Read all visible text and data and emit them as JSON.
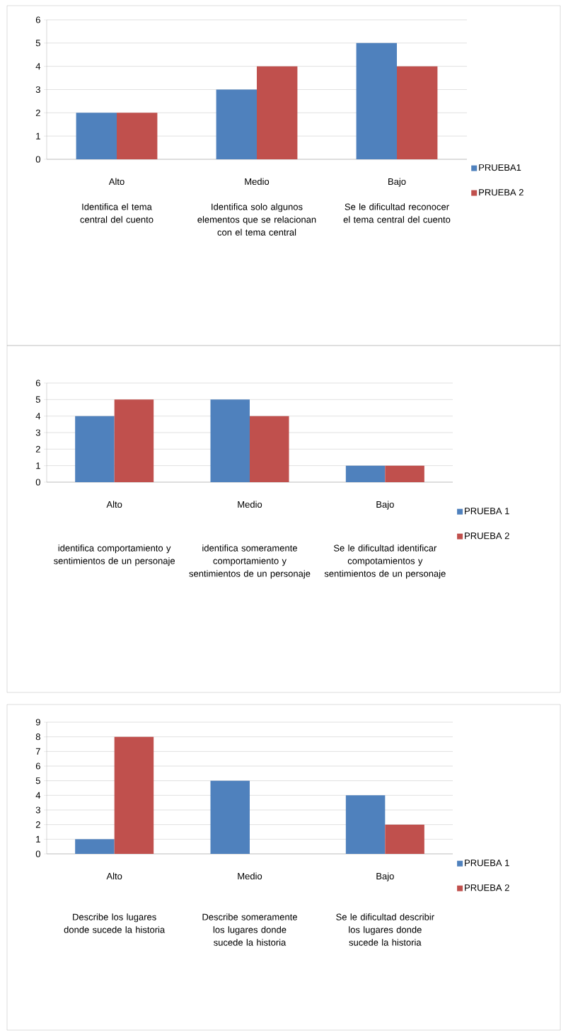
{
  "chart_data": [
    {
      "type": "bar",
      "categories": [
        "Alto",
        "Medio",
        "Bajo"
      ],
      "series": [
        {
          "name": "PRUEBA1",
          "color": "#4f81bd",
          "values": [
            2,
            3,
            5
          ]
        },
        {
          "name": "PRUEBA 2",
          "color": "#c0504d",
          "values": [
            2,
            4,
            4
          ]
        }
      ],
      "ylim": [
        0,
        6
      ],
      "yticks": [
        0,
        1,
        2,
        3,
        4,
        5,
        6
      ],
      "grid": "y",
      "legend": "right",
      "annotations": [
        "Identifica el tema central del cuento",
        "Identifica solo algunos elementos que se relacionan con el tema central",
        "Se le dificultad reconocer el tema central del cuento"
      ]
    },
    {
      "type": "bar",
      "categories": [
        "Alto",
        "Medio",
        "Bajo"
      ],
      "series": [
        {
          "name": "PRUEBA 1",
          "color": "#4f81bd",
          "values": [
            4,
            5,
            1
          ]
        },
        {
          "name": "PRUEBA 2",
          "color": "#c0504d",
          "values": [
            5,
            4,
            1
          ]
        }
      ],
      "ylim": [
        0,
        6
      ],
      "yticks": [
        0,
        1,
        2,
        3,
        4,
        5,
        6
      ],
      "grid": "y",
      "legend": "right",
      "annotations": [
        "identifica comportamiento y sentimientos de un personaje",
        "identifica someramente comportamiento y sentimientos de un personaje",
        "Se le dificultad identificar compotamientos y sentimientos de un personaje"
      ]
    },
    {
      "type": "bar",
      "categories": [
        "Alto",
        "Medio",
        "Bajo"
      ],
      "series": [
        {
          "name": "PRUEBA 1",
          "color": "#4f81bd",
          "values": [
            1,
            5,
            4
          ]
        },
        {
          "name": "PRUEBA 2",
          "color": "#c0504d",
          "values": [
            8,
            0,
            2
          ]
        }
      ],
      "ylim": [
        0,
        9
      ],
      "yticks": [
        0,
        1,
        2,
        3,
        4,
        5,
        6,
        7,
        8,
        9
      ],
      "grid": "y",
      "legend": "right",
      "annotations": [
        "Describe los lugares donde sucede la historia",
        "Describe someramente los lugares donde sucede la historia",
        "Se le dificultad describir los lugares donde sucede la historia"
      ]
    }
  ]
}
